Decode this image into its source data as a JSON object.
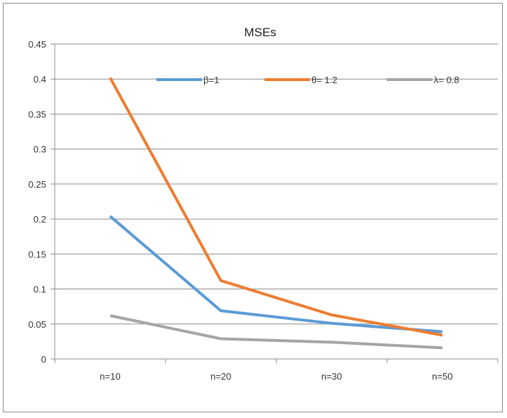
{
  "chart_data": {
    "type": "line",
    "title": "MSEs",
    "xlabel": "",
    "ylabel": "",
    "categories": [
      "n=10",
      "n=20",
      "n=30",
      "n=50"
    ],
    "ylim": [
      0,
      0.45
    ],
    "yticks": [
      0,
      0.05,
      0.1,
      0.15,
      0.2,
      0.25,
      0.3,
      0.35,
      0.4,
      0.45
    ],
    "ytick_labels": [
      "0",
      "0.05",
      "0.1",
      "0.15",
      "0.2",
      "0.25",
      "0.3",
      "0.35",
      "0.4",
      "0.45"
    ],
    "grid": true,
    "legend_position": "top-right",
    "series": [
      {
        "name": "β=1",
        "color": "#5b9bd5",
        "values": [
          0.204,
          0.069,
          0.051,
          0.039
        ]
      },
      {
        "name": "θ= 1.2",
        "color": "#ed7d31",
        "values": [
          0.402,
          0.112,
          0.063,
          0.034
        ]
      },
      {
        "name": "λ= 0.8",
        "color": "#a5a5a5",
        "values": [
          0.062,
          0.029,
          0.024,
          0.016
        ]
      }
    ]
  }
}
